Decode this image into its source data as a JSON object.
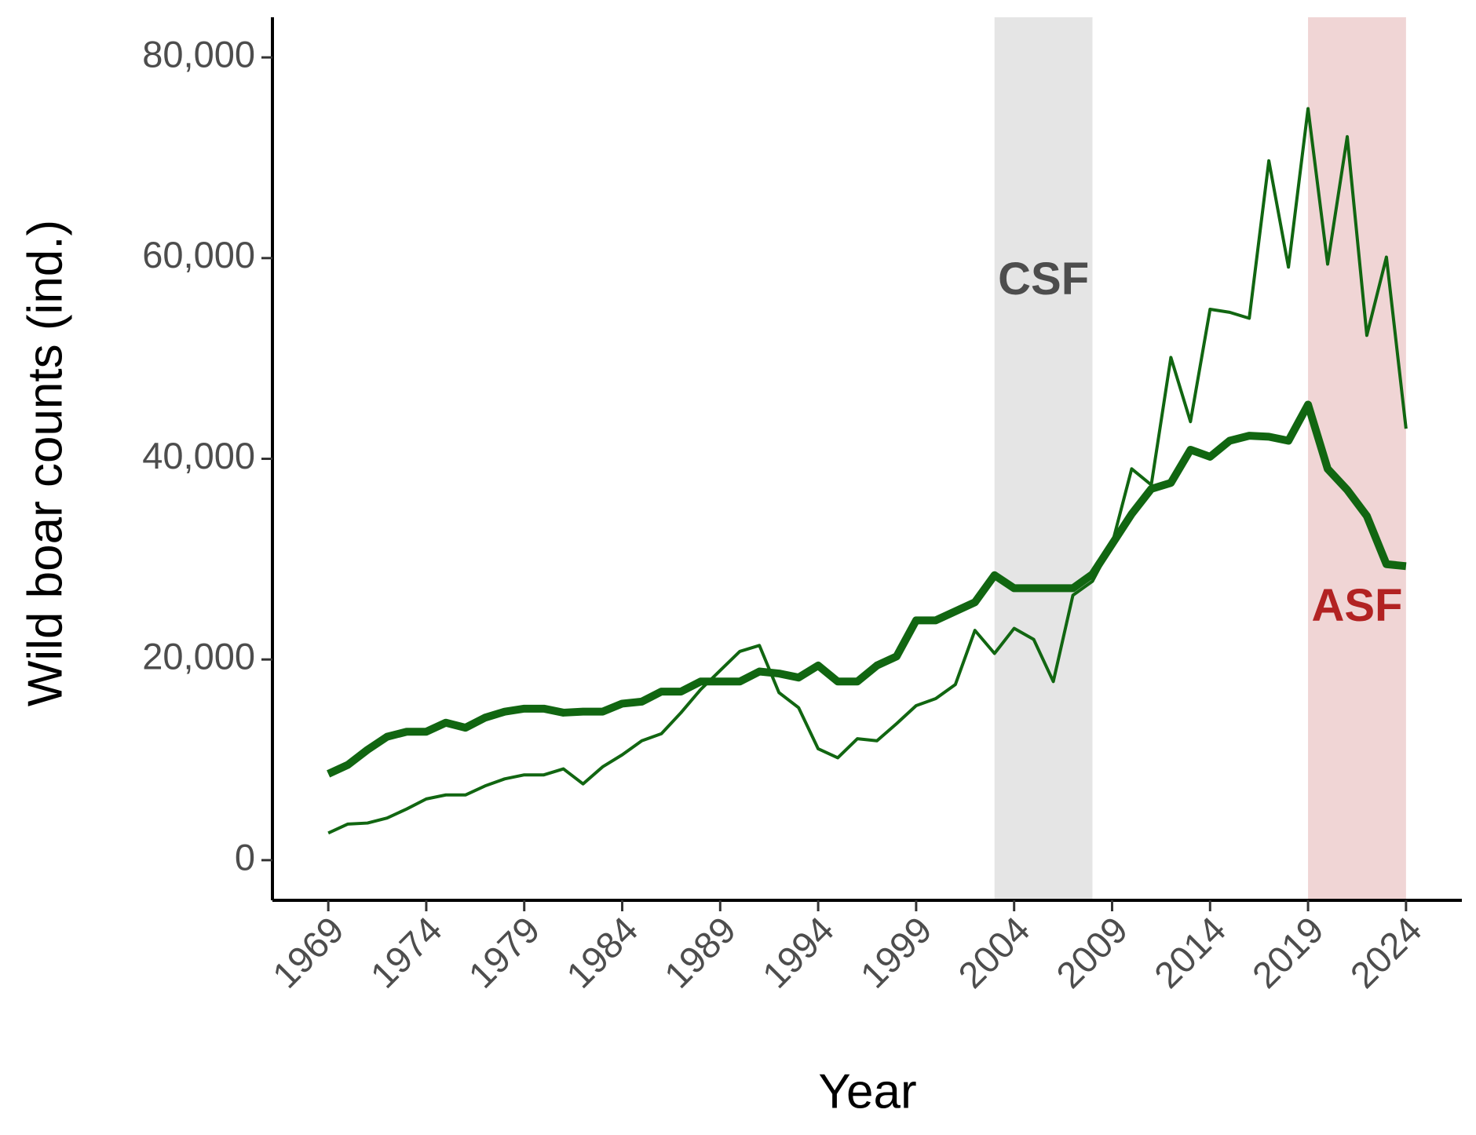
{
  "chart_data": {
    "type": "line",
    "x_label": "Year",
    "y_label": "Wild boar counts (ind.)",
    "x": [
      1969,
      1970,
      1971,
      1972,
      1973,
      1974,
      1975,
      1976,
      1977,
      1978,
      1979,
      1980,
      1981,
      1982,
      1983,
      1984,
      1985,
      1986,
      1987,
      1988,
      1989,
      1990,
      1991,
      1992,
      1993,
      1994,
      1995,
      1996,
      1997,
      1998,
      1999,
      2000,
      2001,
      2002,
      2003,
      2004,
      2005,
      2006,
      2007,
      2008,
      2009,
      2010,
      2011,
      2012,
      2013,
      2014,
      2015,
      2016,
      2017,
      2018,
      2019,
      2020,
      2021,
      2022,
      2023,
      2024
    ],
    "series": [
      {
        "color": "#116611",
        "values": [
          8600,
          9500,
          11000,
          12300,
          12800,
          12800,
          13700,
          13200,
          14200,
          14800,
          15100,
          15100,
          14700,
          14800,
          14800,
          15600,
          15800,
          16800,
          16800,
          17800,
          17800,
          17800,
          18800,
          18600,
          18200,
          19400,
          17800,
          17800,
          19400,
          20300,
          23900,
          23900,
          24800,
          25700,
          28400,
          27100,
          27100,
          27100,
          27100,
          28500,
          31500,
          34500,
          37000,
          37600,
          40900,
          40200,
          41800,
          42300,
          42200,
          41800,
          45400,
          39000,
          36900,
          34300,
          29500,
          29300
        ]
      },
      {
        "color": "#116611",
        "values": [
          2700,
          3600,
          3700,
          4200,
          5100,
          6100,
          6500,
          6500,
          7400,
          8100,
          8500,
          8500,
          9100,
          7600,
          9300,
          10500,
          11900,
          12600,
          14700,
          17000,
          18900,
          20800,
          21400,
          16700,
          15200,
          11100,
          10200,
          12100,
          11900,
          13600,
          15400,
          16100,
          17500,
          22900,
          20600,
          23100,
          22000,
          17800,
          26400,
          27800,
          31500,
          39000,
          37400,
          50100,
          43700,
          54900,
          54600,
          54000,
          69700,
          59100,
          74900,
          59400,
          72100,
          52300,
          60100,
          43000
        ]
      }
    ],
    "xlim": [
      1966.15,
      2026.85
    ],
    "ylim": [
      -4000,
      84000
    ],
    "xticks": [
      1969,
      1974,
      1979,
      1984,
      1989,
      1994,
      1999,
      2004,
      2009,
      2014,
      2019,
      2024
    ],
    "yticks": [
      0,
      {
        "value": 20000,
        "label": "20,000"
      },
      {
        "value": 40000,
        "label": "40,000"
      },
      {
        "value": 60000,
        "label": "60,000"
      },
      {
        "value": 80000,
        "label": "80,000"
      }
    ],
    "shaded": [
      {
        "label": "CSF",
        "from": 2003,
        "to": 2008,
        "color": "#e5e5e5",
        "label_color": "#4d4d4d"
      },
      {
        "label": "ASF",
        "from": 2019,
        "to": 2024,
        "color": "#f0d5d5",
        "label_color": "#b22222"
      }
    ]
  }
}
